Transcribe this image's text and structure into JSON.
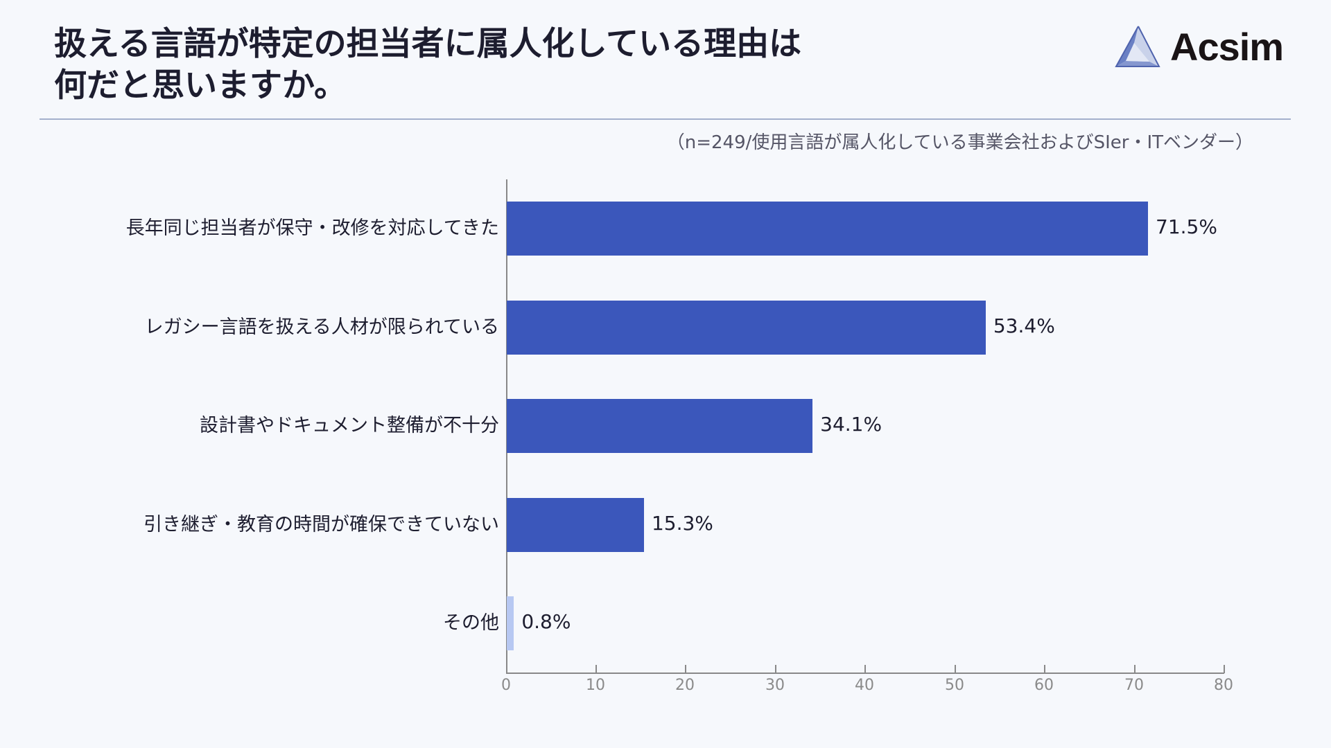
{
  "header": {
    "title_line1": "扱える言語が特定の担当者に属人化している理由は",
    "title_line2": "何だと思いますか。",
    "logo_text": "Acsim",
    "subtitle": "（n=249/使用言語が属人化している事業会社およびSIer・ITベンダー）"
  },
  "colors": {
    "background": "#f6f8fc",
    "bar_primary": "#3b57bb",
    "bar_other": "#b7c8f2",
    "divider": "#a3b0cc",
    "title": "#1d1d2f"
  },
  "chart_data": {
    "type": "bar",
    "orientation": "horizontal",
    "title": "扱える言語が特定の担当者に属人化している理由は何だと思いますか。",
    "subtitle": "（n=249/使用言語が属人化している事業会社およびSIer・ITベンダー）",
    "categories": [
      "長年同じ担当者が保守・改修を対応してきた",
      "レガシー言語を扱える人材が限られている",
      "設計書やドキュメント整備が不十分",
      "引き継ぎ・教育の時間が確保できていない",
      "その他"
    ],
    "values": [
      71.5,
      53.4,
      34.1,
      15.3,
      0.8
    ],
    "value_labels": [
      "71.5%",
      "53.4%",
      "34.1%",
      "15.3%",
      "0.8%"
    ],
    "xlabel": "",
    "ylabel": "",
    "xlim": [
      0,
      80
    ],
    "xticks": [
      "0",
      "10",
      "20",
      "30",
      "40",
      "50",
      "60",
      "70",
      "80"
    ],
    "grid": false,
    "legend": null,
    "units": "%"
  }
}
